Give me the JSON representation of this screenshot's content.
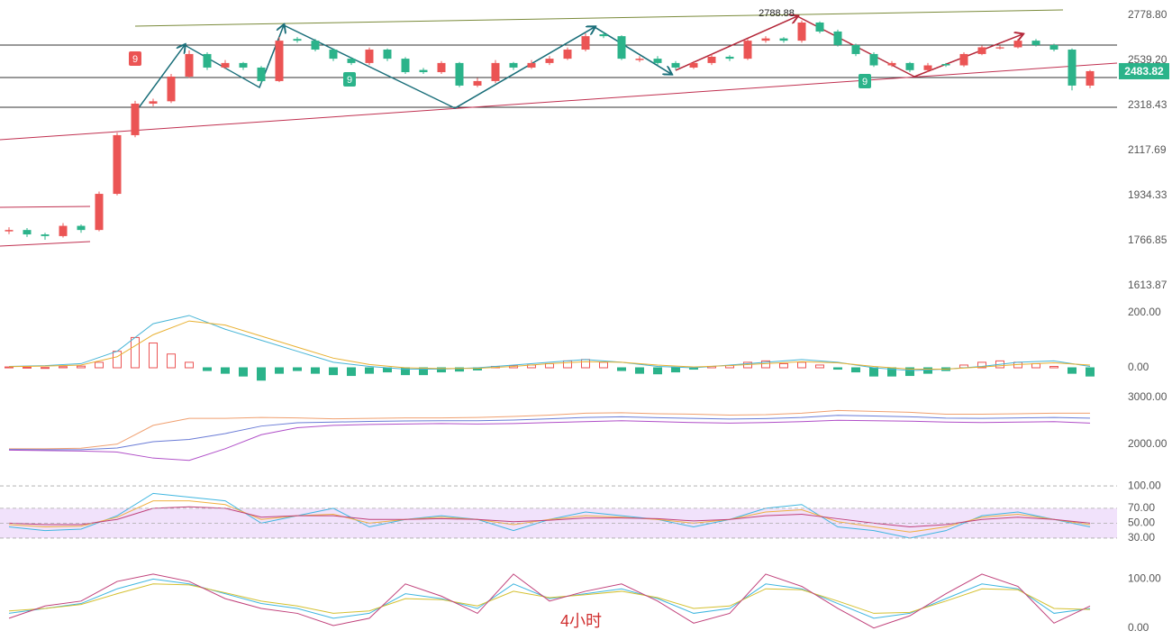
{
  "chart_data": [
    {
      "type": "candlestick",
      "log": true,
      "ylim": [
        1576,
        2866
      ],
      "yticks": [
        {
          "value": 2778.8,
          "label": "2778.80"
        },
        {
          "value": 2539.2,
          "label": "2539.20"
        },
        {
          "value": 2318.43,
          "label": "2318.43"
        },
        {
          "value": 2117.69,
          "label": "2117.69"
        },
        {
          "value": 1934.33,
          "label": "1934.33"
        },
        {
          "value": 1766.85,
          "label": "1766.85"
        },
        {
          "value": 1613.87,
          "label": "1613.87"
        }
      ],
      "up_color": "#eb5454",
      "down_color": "#2bb38a",
      "open": [
        1800,
        1805,
        1789,
        1783,
        1820,
        1805,
        1941,
        2184,
        2327,
        2338,
        2457,
        2571,
        2502,
        2525,
        2502,
        2435,
        2650,
        2641,
        2594,
        2547,
        2525,
        2594,
        2547,
        2490,
        2479,
        2525,
        2413,
        2435,
        2525,
        2502,
        2525,
        2547,
        2594,
        2675,
        2665,
        2540,
        2547,
        2525,
        2502,
        2525,
        2557,
        2547,
        2641,
        2653,
        2641,
        2739,
        2690,
        2618,
        2571,
        2513,
        2525,
        2489,
        2520,
        2513,
        2571,
        2600,
        2606,
        2641,
        2618,
        2594,
        2413
      ],
      "high": [
        1815,
        1812,
        1795,
        1830,
        1825,
        1950,
        2195,
        2340,
        2350,
        2470,
        2590,
        2580,
        2540,
        2530,
        2510,
        2660,
        2660,
        2650,
        2600,
        2555,
        2605,
        2600,
        2555,
        2500,
        2535,
        2530,
        2450,
        2540,
        2530,
        2540,
        2560,
        2605,
        2680,
        2690,
        2670,
        2560,
        2560,
        2535,
        2535,
        2570,
        2565,
        2650,
        2665,
        2660,
        2750,
        2745,
        2700,
        2625,
        2580,
        2535,
        2530,
        2525,
        2525,
        2580,
        2615,
        2615,
        2650,
        2650,
        2625,
        2600,
        2490
      ],
      "low": [
        1790,
        1780,
        1770,
        1778,
        1795,
        1800,
        1935,
        2175,
        2315,
        2330,
        2450,
        2490,
        2495,
        2490,
        2425,
        2430,
        2630,
        2585,
        2535,
        2515,
        2515,
        2535,
        2470,
        2470,
        2470,
        2405,
        2405,
        2425,
        2490,
        2495,
        2515,
        2540,
        2585,
        2655,
        2540,
        2530,
        2515,
        2490,
        2495,
        2515,
        2535,
        2540,
        2630,
        2630,
        2630,
        2680,
        2610,
        2560,
        2505,
        2505,
        2480,
        2480,
        2505,
        2505,
        2565,
        2595,
        2600,
        2610,
        2585,
        2390,
        2400
      ],
      "close": [
        1805,
        1789,
        1783,
        1820,
        1805,
        1941,
        2184,
        2327,
        2338,
        2457,
        2571,
        2502,
        2525,
        2502,
        2435,
        2641,
        2641,
        2594,
        2547,
        2525,
        2594,
        2547,
        2479,
        2479,
        2525,
        2413,
        2435,
        2525,
        2502,
        2525,
        2547,
        2594,
        2665,
        2665,
        2547,
        2547,
        2525,
        2502,
        2525,
        2557,
        2547,
        2641,
        2653,
        2641,
        2739,
        2690,
        2618,
        2571,
        2513,
        2525,
        2489,
        2513,
        2513,
        2571,
        2606,
        2606,
        2641,
        2618,
        2594,
        2413,
        2484
      ],
      "last_price": 2483.82,
      "high_label": 2788.88,
      "markers": [
        "9",
        "9",
        "9"
      ],
      "period_label": "4小时"
    },
    {
      "type": "macd",
      "ylim": [
        -72,
        239
      ],
      "yticks": [
        {
          "value": 200,
          "label": "200.00"
        },
        {
          "value": 0,
          "label": "0.00"
        }
      ],
      "up_color": "#eb5454",
      "down_color": "#2bb38a",
      "histogram": [
        3,
        2,
        1,
        4,
        6,
        20,
        60,
        110,
        90,
        50,
        20,
        -10,
        -20,
        -30,
        -45,
        -20,
        -10,
        -20,
        -25,
        -28,
        -20,
        -15,
        -25,
        -25,
        -15,
        -12,
        -8,
        5,
        8,
        10,
        15,
        25,
        30,
        20,
        -10,
        -20,
        -22,
        -15,
        -5,
        5,
        8,
        20,
        25,
        15,
        20,
        10,
        -5,
        -15,
        -30,
        -30,
        -28,
        -20,
        -10,
        10,
        20,
        25,
        20,
        15,
        5,
        -20,
        -30
      ],
      "series": [
        {
          "color": "#45b4d6",
          "values": [
            5,
            8,
            15,
            60,
            160,
            190,
            140,
            100,
            60,
            20,
            5,
            -5,
            -5,
            0,
            10,
            20,
            30,
            20,
            5,
            0,
            10,
            20,
            30,
            20,
            0,
            -10,
            -5,
            5,
            20,
            25,
            5
          ]
        },
        {
          "color": "#e8b030",
          "values": [
            4,
            6,
            10,
            40,
            120,
            170,
            155,
            115,
            75,
            35,
            12,
            0,
            -3,
            -2,
            5,
            15,
            22,
            20,
            10,
            3,
            8,
            15,
            22,
            18,
            5,
            -5,
            -5,
            3,
            12,
            18,
            10
          ]
        }
      ]
    },
    {
      "type": "line",
      "ylim": [
        1472,
        3170
      ],
      "yticks": [
        {
          "value": 3000,
          "label": "3000.00"
        },
        {
          "value": 2000,
          "label": "2000.00"
        }
      ],
      "series": [
        {
          "color": "#f0a070",
          "values": [
            1900,
            1900,
            1910,
            2000,
            2400,
            2550,
            2550,
            2570,
            2560,
            2540,
            2550,
            2560,
            2560,
            2570,
            2590,
            2620,
            2660,
            2670,
            2650,
            2640,
            2620,
            2630,
            2660,
            2720,
            2700,
            2680,
            2640,
            2640,
            2650,
            2660,
            2660
          ]
        },
        {
          "color": "#6a7bd6",
          "values": [
            1885,
            1880,
            1880,
            1915,
            2050,
            2100,
            2225,
            2385,
            2455,
            2470,
            2485,
            2495,
            2500,
            2500,
            2515,
            2540,
            2570,
            2585,
            2565,
            2550,
            2535,
            2545,
            2570,
            2615,
            2600,
            2585,
            2555,
            2550,
            2560,
            2570,
            2555
          ]
        },
        {
          "color": "#b04fc8",
          "values": [
            1870,
            1860,
            1850,
            1830,
            1700,
            1650,
            1900,
            2200,
            2350,
            2400,
            2420,
            2430,
            2440,
            2430,
            2440,
            2460,
            2480,
            2500,
            2480,
            2460,
            2450,
            2460,
            2480,
            2510,
            2500,
            2490,
            2470,
            2460,
            2470,
            2480,
            2450
          ]
        }
      ]
    },
    {
      "type": "line",
      "ylim": [
        -4,
        111
      ],
      "grid": true,
      "shade": true,
      "yticks": [
        {
          "value": 100,
          "label": "100.00"
        },
        {
          "value": 70,
          "label": "70.00"
        },
        {
          "value": 50,
          "label": "50.00"
        },
        {
          "value": 30,
          "label": "30.00"
        }
      ],
      "series": [
        {
          "color": "#3fb6e0",
          "values": [
            45,
            40,
            42,
            60,
            90,
            85,
            80,
            50,
            60,
            70,
            45,
            55,
            60,
            55,
            40,
            55,
            65,
            60,
            55,
            45,
            55,
            70,
            75,
            45,
            40,
            30,
            40,
            60,
            65,
            55,
            45
          ]
        },
        {
          "color": "#f0b040",
          "values": [
            48,
            45,
            46,
            58,
            80,
            80,
            75,
            55,
            60,
            62,
            50,
            55,
            58,
            55,
            48,
            55,
            60,
            58,
            55,
            50,
            55,
            65,
            68,
            52,
            45,
            38,
            45,
            58,
            62,
            55,
            48
          ]
        },
        {
          "color": "#c0407a",
          "values": [
            50,
            48,
            48,
            55,
            70,
            72,
            70,
            58,
            60,
            60,
            55,
            55,
            56,
            55,
            52,
            54,
            57,
            57,
            56,
            53,
            55,
            60,
            62,
            56,
            50,
            45,
            48,
            55,
            58,
            55,
            50
          ]
        }
      ]
    },
    {
      "type": "line",
      "ylim": [
        -17,
        119
      ],
      "yticks": [
        {
          "value": 100,
          "label": "100.00"
        },
        {
          "value": 0,
          "label": "0.00"
        }
      ],
      "series": [
        {
          "color": "#3fb6e0",
          "values": [
            30,
            40,
            50,
            80,
            100,
            90,
            70,
            50,
            40,
            20,
            30,
            70,
            60,
            40,
            90,
            60,
            70,
            80,
            60,
            30,
            40,
            90,
            80,
            50,
            20,
            30,
            60,
            90,
            80,
            30,
            40
          ]
        },
        {
          "color": "#d4c030",
          "values": [
            35,
            40,
            48,
            70,
            90,
            88,
            72,
            55,
            45,
            30,
            35,
            60,
            58,
            45,
            75,
            62,
            68,
            75,
            62,
            40,
            45,
            80,
            78,
            55,
            30,
            32,
            55,
            80,
            78,
            40,
            38
          ]
        },
        {
          "color": "#c0407a",
          "values": [
            20,
            45,
            55,
            95,
            110,
            95,
            60,
            40,
            30,
            5,
            20,
            90,
            65,
            30,
            110,
            55,
            75,
            90,
            55,
            10,
            30,
            110,
            85,
            40,
            0,
            25,
            70,
            110,
            85,
            10,
            45
          ]
        }
      ]
    }
  ]
}
